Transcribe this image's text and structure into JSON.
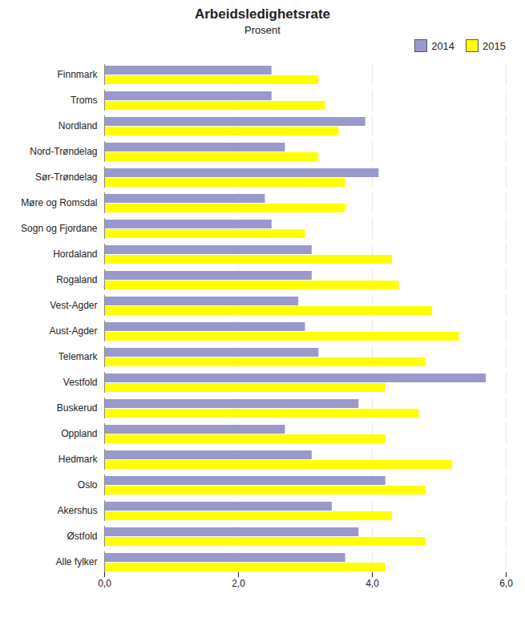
{
  "chart_data": {
    "type": "bar",
    "orientation": "horizontal",
    "title": "Arbeidsledighetsrate",
    "subtitle": "Prosent",
    "categories": [
      "Finnmark",
      "Troms",
      "Nordland",
      "Nord-Trøndelag",
      "Sør-Trøndelag",
      "Møre og Romsdal",
      "Sogn og Fjordane",
      "Hordaland",
      "Rogaland",
      "Vest-Agder",
      "Aust-Agder",
      "Telemark",
      "Vestfold",
      "Buskerud",
      "Oppland",
      "Hedmark",
      "Oslo",
      "Akershus",
      "Østfold",
      "Alle fylker"
    ],
    "series": [
      {
        "name": "2014",
        "color": "#9999cc",
        "values": [
          2.5,
          2.5,
          3.9,
          2.7,
          4.1,
          2.4,
          2.5,
          3.1,
          3.1,
          2.9,
          3.0,
          3.2,
          5.7,
          3.8,
          2.7,
          3.1,
          4.2,
          3.4,
          3.8,
          3.6
        ]
      },
      {
        "name": "2015",
        "color": "#ffff00",
        "values": [
          3.2,
          3.3,
          3.5,
          3.2,
          3.6,
          3.6,
          3.0,
          4.3,
          4.4,
          4.9,
          5.3,
          4.8,
          4.2,
          4.7,
          4.2,
          5.2,
          4.8,
          4.3,
          4.8,
          4.2
        ]
      }
    ],
    "xlim": [
      0,
      6.0
    ],
    "xticks": [
      {
        "value": 0.0,
        "label": "0,0"
      },
      {
        "value": 2.0,
        "label": "2,0"
      },
      {
        "value": 4.0,
        "label": "4,0"
      },
      {
        "value": 6.0,
        "label": "6,0"
      }
    ],
    "grid": true,
    "legend": "upper right"
  }
}
